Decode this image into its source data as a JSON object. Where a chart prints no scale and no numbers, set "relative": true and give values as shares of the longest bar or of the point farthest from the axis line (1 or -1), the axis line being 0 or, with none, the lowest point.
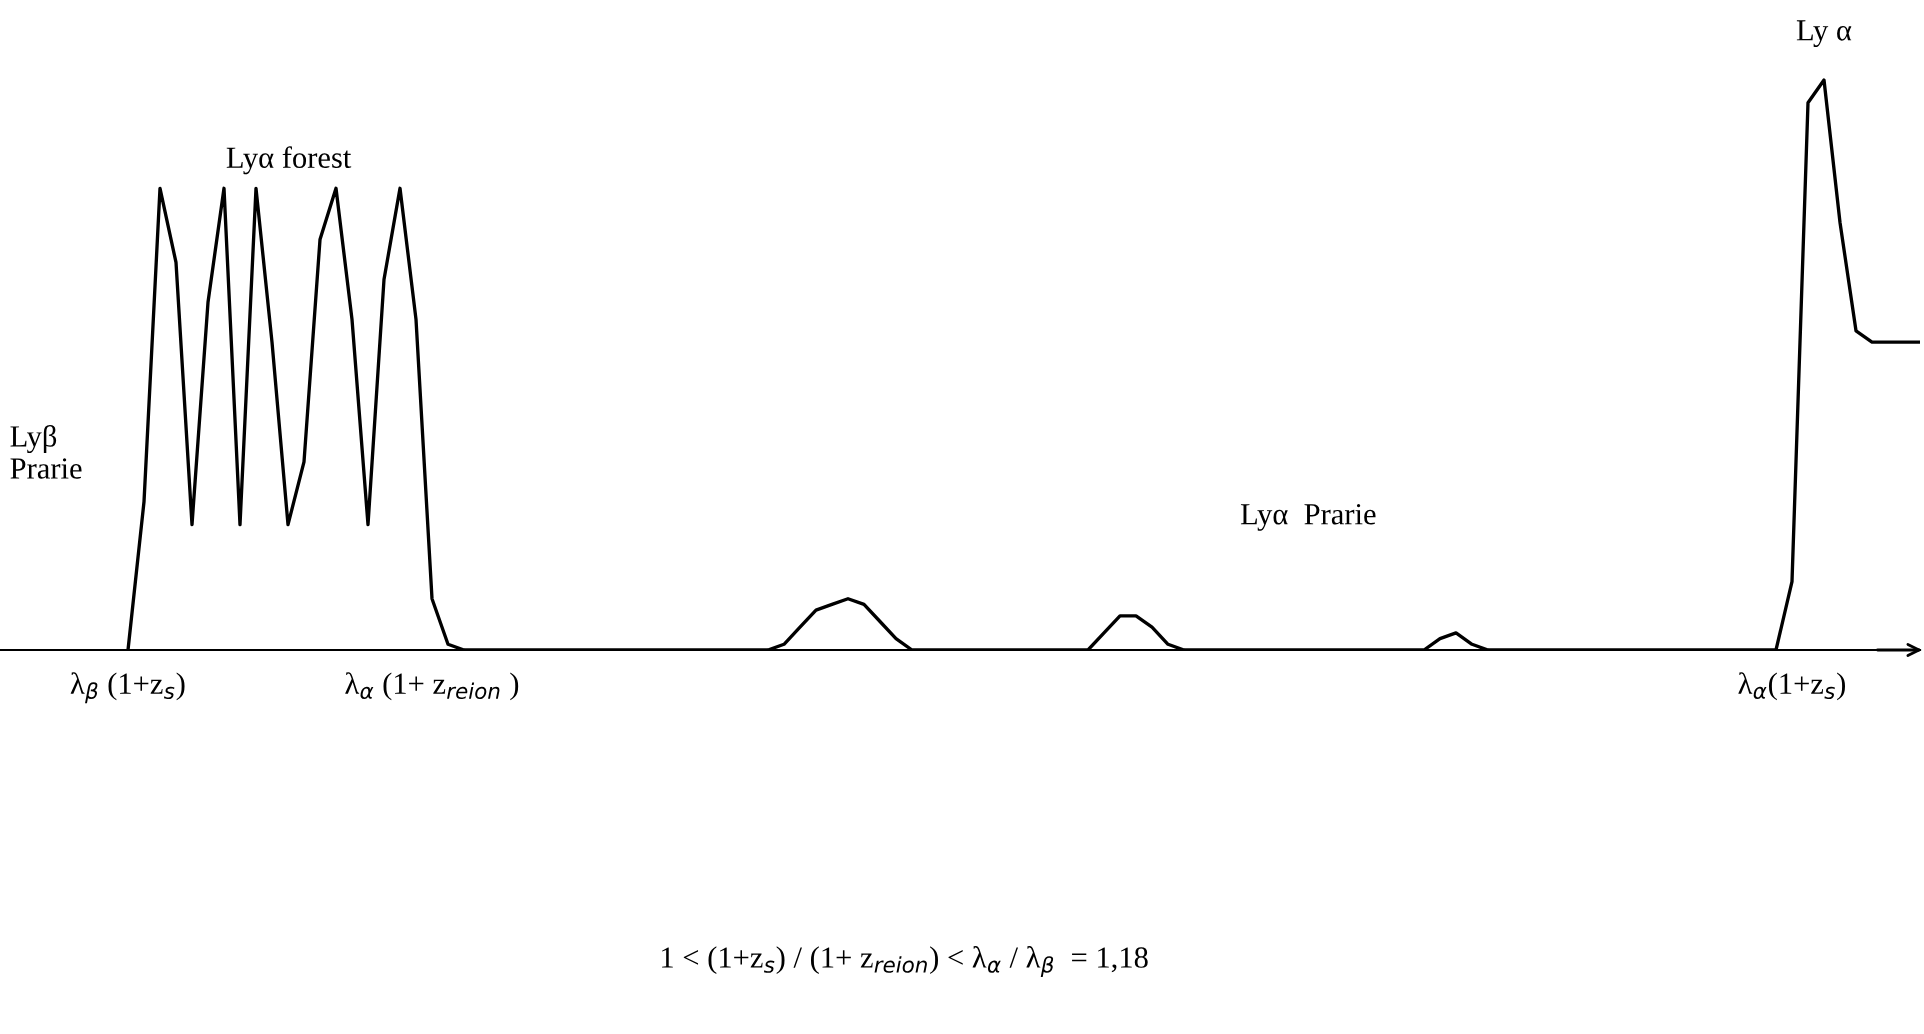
{
  "chart_data": {
    "type": "line",
    "relative": true,
    "tick_labels": "x",
    "color": "#000000",
    "categories": [
      null,
      null,
      null,
      null,
      null,
      null,
      null,
      null,
      "λ$_{β}$ (1+z$_{s}$)",
      null,
      null,
      null,
      null,
      null,
      null,
      null,
      null,
      null,
      null,
      null,
      null,
      null,
      null,
      null,
      null,
      null,
      null,
      "λ$_{α}$ (1+ z$_{reion}$ )",
      null,
      null,
      null,
      null,
      null,
      null,
      null,
      null,
      null,
      null,
      null,
      null,
      null,
      null,
      null,
      null,
      null,
      null,
      null,
      null,
      null,
      null,
      null,
      null,
      null,
      null,
      null,
      null,
      null,
      null,
      null,
      null,
      null,
      null,
      null,
      null,
      null,
      null,
      null,
      null,
      null,
      null,
      null,
      null,
      null,
      null,
      null,
      null,
      null,
      null,
      null,
      null,
      null,
      null,
      null,
      null,
      null,
      null,
      null,
      null,
      null,
      null,
      null,
      null,
      null,
      null,
      null,
      null,
      null,
      null,
      null,
      null,
      null,
      null,
      null,
      null,
      null,
      null,
      null,
      null,
      null,
      null,
      null,
      null,
      "λ$_{α}$(1+z$_{s}$)",
      null,
      null,
      null,
      null,
      null,
      null,
      null,
      null
    ],
    "values": [
      null,
      null,
      null,
      null,
      null,
      null,
      null,
      null,
      0,
      0.26,
      0.81,
      0.68,
      0.22,
      0.61,
      0.81,
      0.22,
      0.81,
      0.54,
      0.22,
      0.33,
      0.72,
      0.81,
      0.58,
      0.22,
      0.65,
      0.81,
      0.58,
      0.09,
      0.01,
      0,
      0,
      0,
      0,
      0,
      0,
      0,
      0,
      0,
      0,
      0,
      0,
      0,
      0,
      0,
      0,
      0,
      0,
      0,
      0,
      0.01,
      0.04,
      0.07,
      0.08,
      0.09,
      0.08,
      0.05,
      0.02,
      0,
      0,
      0,
      0,
      0,
      0,
      0,
      0,
      0,
      0,
      0,
      0,
      0.03,
      0.06,
      0.06,
      0.04,
      0.01,
      0,
      0,
      0,
      0,
      0,
      0,
      0,
      0,
      0,
      0,
      0,
      0,
      0,
      0,
      0,
      0,
      0.02,
      0.03,
      0.01,
      0,
      0,
      0,
      0,
      0,
      0,
      0,
      0,
      0,
      0,
      0,
      0,
      0,
      0,
      0,
      0,
      0,
      0,
      0,
      0.12,
      0.96,
      1,
      0.75,
      0.56,
      0.54,
      0.54,
      0.54,
      0.54
    ],
    "annotations": [
      "Lyα forest",
      "Lyβ\nPrarie",
      "Lyα  Prarie",
      "Ly α",
      "1 < (1+z$_{s}$) / (1+ z$_{reion}$) < λ$_{α}$ / λ$_{β}$  = 1,18"
    ]
  }
}
